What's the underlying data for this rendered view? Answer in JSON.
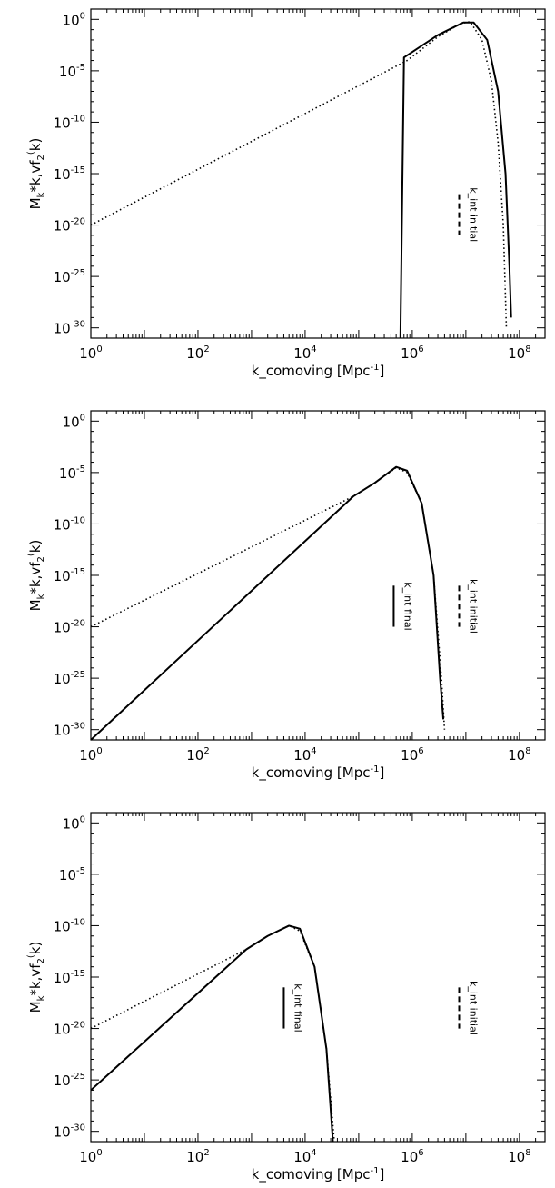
{
  "chart_data": [
    {
      "type": "line",
      "xscale": "log",
      "yscale": "log",
      "xlim": [
        1,
        300000000
      ],
      "ylim": [
        1e-31,
        10
      ],
      "xlabel": "k_comoving [Mpc-1]",
      "ylabel": "Mk*k,vf2(k)",
      "x_ticks": [
        1,
        100,
        10000,
        1000000,
        100000000
      ],
      "x_tick_labels": [
        {
          "b": "10",
          "e": "0"
        },
        {
          "b": "10",
          "e": "2"
        },
        {
          "b": "10",
          "e": "4"
        },
        {
          "b": "10",
          "e": "6"
        },
        {
          "b": "10",
          "e": "8"
        }
      ],
      "y_ticks": [
        1,
        1e-05,
        1e-10,
        1e-15,
        1e-20,
        1e-25,
        1e-30
      ],
      "y_tick_labels": [
        {
          "b": "10",
          "e": "0"
        },
        {
          "b": "10",
          "e": "-5"
        },
        {
          "b": "10",
          "e": "-10"
        },
        {
          "b": "10",
          "e": "-15"
        },
        {
          "b": "10",
          "e": "-20"
        },
        {
          "b": "10",
          "e": "-25"
        },
        {
          "b": "10",
          "e": "-30"
        }
      ],
      "series": [
        {
          "style": "dotted",
          "points": [
            [
              1,
              1e-20
            ],
            [
              800000,
              0.0001
            ],
            [
              3000000,
              0.02
            ],
            [
              8000000,
              0.4
            ],
            [
              12000000,
              0.6
            ],
            [
              20000000,
              0.01
            ],
            [
              30000000,
              1e-06
            ],
            [
              40000000,
              1e-12
            ],
            [
              50000000,
              1e-20
            ],
            [
              57000000,
              1e-30
            ]
          ]
        },
        {
          "style": "solid",
          "points": [
            [
              600000,
              1e-31
            ],
            [
              700000,
              0.0002
            ],
            [
              3000000,
              0.03
            ],
            [
              9000000,
              0.5
            ],
            [
              14000000,
              0.5
            ],
            [
              25000000,
              0.01
            ],
            [
              40000000,
              1e-07
            ],
            [
              55000000,
              1e-15
            ],
            [
              65000000,
              1e-24
            ],
            [
              70000000,
              1e-29
            ]
          ]
        }
      ],
      "annotations": [
        {
          "text": "k_int initial",
          "x": 7500000,
          "y_from": 1e-17,
          "y_to": 1e-21,
          "style": "dashed"
        }
      ]
    },
    {
      "type": "line",
      "xscale": "log",
      "yscale": "log",
      "xlim": [
        1,
        300000000
      ],
      "ylim": [
        1e-31,
        10
      ],
      "xlabel": "k_comoving [Mpc-1]",
      "ylabel": "Mk*k,vf2(k)",
      "x_ticks": [
        1,
        100,
        10000,
        1000000,
        100000000
      ],
      "x_tick_labels": [
        {
          "b": "10",
          "e": "0"
        },
        {
          "b": "10",
          "e": "2"
        },
        {
          "b": "10",
          "e": "4"
        },
        {
          "b": "10",
          "e": "6"
        },
        {
          "b": "10",
          "e": "8"
        }
      ],
      "y_ticks": [
        1,
        1e-05,
        1e-10,
        1e-15,
        1e-20,
        1e-25,
        1e-30
      ],
      "y_tick_labels": [
        {
          "b": "10",
          "e": "0"
        },
        {
          "b": "10",
          "e": "-5"
        },
        {
          "b": "10",
          "e": "-10"
        },
        {
          "b": "10",
          "e": "-15"
        },
        {
          "b": "10",
          "e": "-20"
        },
        {
          "b": "10",
          "e": "-25"
        },
        {
          "b": "10",
          "e": "-30"
        }
      ],
      "series": [
        {
          "style": "dotted",
          "points": [
            [
              1,
              1e-20
            ],
            [
              80000,
              5e-08
            ],
            [
              200000,
              1e-06
            ],
            [
              500000,
              3e-05
            ],
            [
              800000,
              1e-05
            ],
            [
              1500000,
              1e-08
            ],
            [
              2500000,
              1e-15
            ],
            [
              3500000,
              1e-25
            ],
            [
              4000000,
              1e-30
            ]
          ]
        },
        {
          "style": "solid",
          "points": [
            [
              1,
              1e-31
            ],
            [
              80000,
              5e-08
            ],
            [
              200000,
              1e-06
            ],
            [
              500000,
              3.5e-05
            ],
            [
              800000,
              1.5e-05
            ],
            [
              1500000,
              1e-08
            ],
            [
              2500000,
              1e-15
            ],
            [
              3300000,
              1e-25
            ],
            [
              3800000,
              1e-29
            ]
          ]
        }
      ],
      "annotations": [
        {
          "text": "k_int final",
          "x": 450000,
          "y_from": 1e-16,
          "y_to": 1e-20,
          "style": "solid"
        },
        {
          "text": "k_int initial",
          "x": 7500000,
          "y_from": 1e-16,
          "y_to": 1e-20,
          "style": "dashed"
        }
      ]
    },
    {
      "type": "line",
      "xscale": "log",
      "yscale": "log",
      "xlim": [
        1,
        300000000
      ],
      "ylim": [
        1e-31,
        10
      ],
      "xlabel": "k_comoving [Mpc-1]",
      "ylabel": "Mk*k,vf2(k)",
      "x_ticks": [
        1,
        100,
        10000,
        1000000,
        100000000
      ],
      "x_tick_labels": [
        {
          "b": "10",
          "e": "0"
        },
        {
          "b": "10",
          "e": "2"
        },
        {
          "b": "10",
          "e": "4"
        },
        {
          "b": "10",
          "e": "6"
        },
        {
          "b": "10",
          "e": "8"
        }
      ],
      "y_ticks": [
        1,
        1e-05,
        1e-10,
        1e-15,
        1e-20,
        1e-25,
        1e-30
      ],
      "y_tick_labels": [
        {
          "b": "10",
          "e": "0"
        },
        {
          "b": "10",
          "e": "-5"
        },
        {
          "b": "10",
          "e": "-10"
        },
        {
          "b": "10",
          "e": "-15"
        },
        {
          "b": "10",
          "e": "-20"
        },
        {
          "b": "10",
          "e": "-25"
        },
        {
          "b": "10",
          "e": "-30"
        }
      ],
      "series": [
        {
          "style": "dotted",
          "points": [
            [
              1,
              1e-20
            ],
            [
              800,
              5e-13
            ],
            [
              2000,
              1e-11
            ],
            [
              5000,
              1e-10
            ],
            [
              8000,
              3e-11
            ],
            [
              15000,
              1e-14
            ],
            [
              25000,
              1e-22
            ],
            [
              35000,
              1e-31
            ]
          ]
        },
        {
          "style": "solid",
          "points": [
            [
              1,
              1e-26
            ],
            [
              800,
              5e-13
            ],
            [
              2000,
              1e-11
            ],
            [
              5000,
              1e-10
            ],
            [
              8000,
              5e-11
            ],
            [
              15000,
              1e-14
            ],
            [
              25000,
              1e-22
            ],
            [
              33000,
              1e-31
            ]
          ]
        }
      ],
      "annotations": [
        {
          "text": "k_int final",
          "x": 4000,
          "y_from": 1e-16,
          "y_to": 1e-20,
          "style": "solid"
        },
        {
          "text": "k_int initial",
          "x": 7500000,
          "y_from": 1e-16,
          "y_to": 1e-20,
          "style": "dashed"
        }
      ]
    }
  ]
}
